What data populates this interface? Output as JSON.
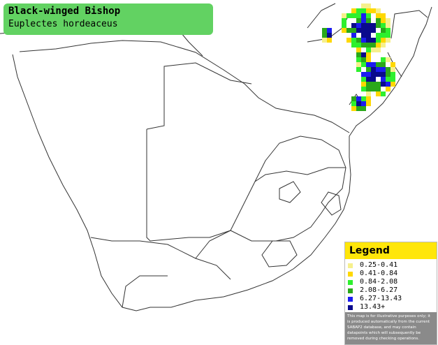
{
  "title": "Black-winged Bishop",
  "subtitle": "Euplectes hordeaceus",
  "legend": {
    "title": "Legend",
    "items": [
      {
        "label": "0.25-0.41",
        "color": "#f6f08c"
      },
      {
        "label": "0.41-0.84",
        "color": "#ffd800"
      },
      {
        "label": "0.84-2.08",
        "color": "#2ef02e"
      },
      {
        "label": "2.08-6.27",
        "color": "#2aa81a"
      },
      {
        "label": "6.27-13.43",
        "color": "#1c1cf0"
      },
      {
        "label": "13.43+",
        "color": "#0a0a8c"
      }
    ],
    "note": "This map is for illustrative purposes only; it is produced automatically from the current SABAP2 database, and may contain datapoints which will subsequently be removed during checking operations."
  }
}
